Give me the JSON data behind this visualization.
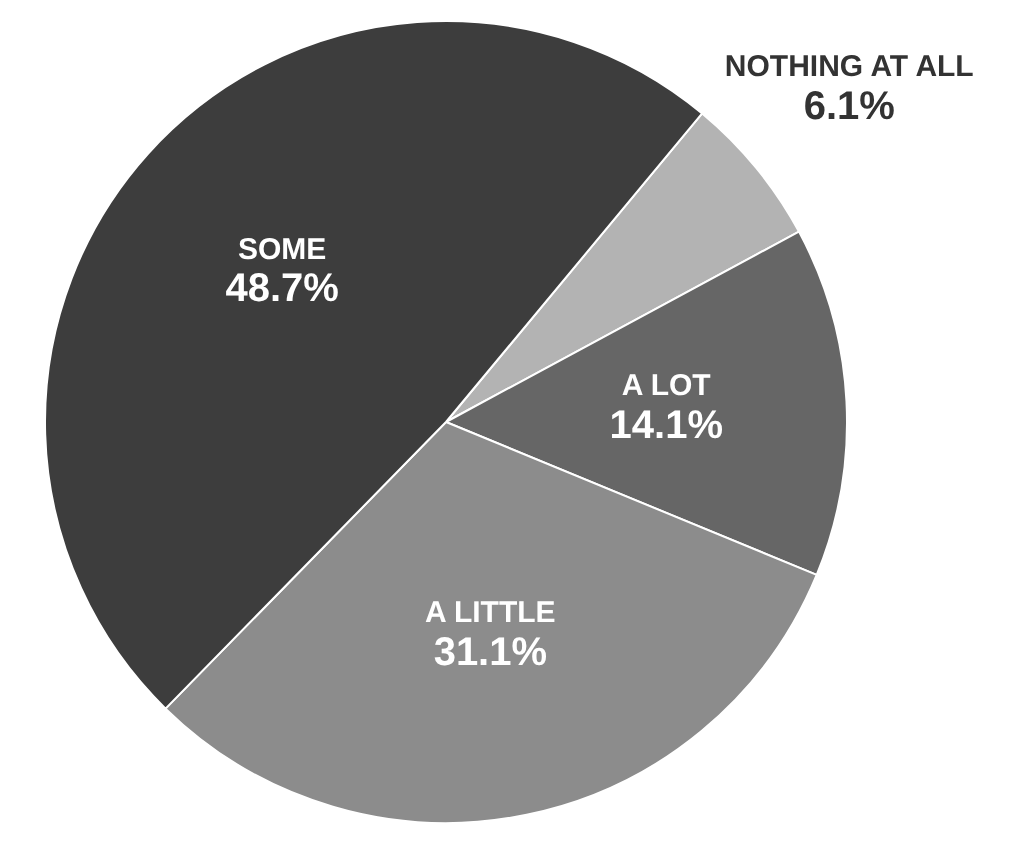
{
  "chart_data": {
    "type": "pie",
    "categories": [
      "NOTHING AT ALL",
      "A LOT",
      "A LITTLE",
      "SOME"
    ],
    "values": [
      6.1,
      14.1,
      31.1,
      48.7
    ],
    "colors": [
      "#b3b3b3",
      "#666666",
      "#8c8c8c",
      "#3d3d3d"
    ],
    "value_labels": [
      "6.1%",
      "14.1%",
      "31.1%",
      "48.7%"
    ],
    "legend": false
  }
}
